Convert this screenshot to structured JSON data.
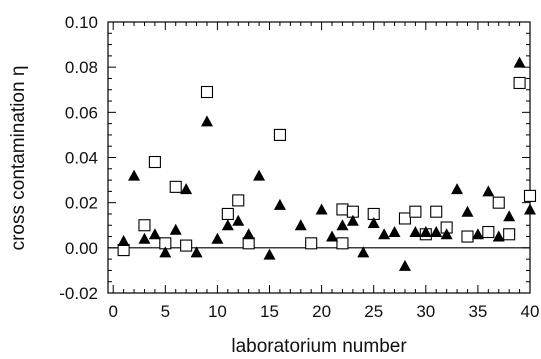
{
  "chart_data": {
    "type": "scatter",
    "title": "",
    "xlabel": "laboratorium number",
    "ylabel": "cross contamination η",
    "xlim": [
      -0.5,
      40
    ],
    "ylim": [
      -0.02,
      0.1
    ],
    "xticks": [
      "0",
      "5",
      "10",
      "15",
      "20",
      "25",
      "30",
      "35",
      "40"
    ],
    "yticks": [
      "-0.02",
      "0.00",
      "0.02",
      "0.04",
      "0.06",
      "0.08",
      "0.10"
    ],
    "zero_line": 0,
    "grid": false,
    "series": [
      {
        "marker": "open-square",
        "x": [
          1,
          3,
          4,
          5,
          6,
          7,
          9,
          11,
          12,
          13,
          16,
          19,
          22,
          22,
          23,
          25,
          28,
          29,
          30,
          31,
          32,
          34,
          36,
          37,
          38,
          39,
          40
        ],
        "y": [
          -0.001,
          0.01,
          0.038,
          0.002,
          0.027,
          0.001,
          0.069,
          0.015,
          0.021,
          0.002,
          0.05,
          0.002,
          0.017,
          0.002,
          0.016,
          0.015,
          0.013,
          0.016,
          0.006,
          0.016,
          0.009,
          0.005,
          0.007,
          0.02,
          0.006,
          0.073,
          0.023
        ]
      },
      {
        "marker": "filled-triangle",
        "x": [
          1,
          2,
          3,
          4,
          5,
          6,
          7,
          8,
          9,
          10,
          11,
          12,
          13,
          14,
          15,
          16,
          18,
          20,
          21,
          22,
          23,
          24,
          25,
          26,
          27,
          28,
          29,
          30,
          31,
          32,
          33,
          34,
          35,
          36,
          37,
          38,
          39,
          40
        ],
        "y": [
          0.003,
          0.032,
          0.004,
          0.006,
          -0.002,
          0.008,
          0.026,
          -0.002,
          0.056,
          0.004,
          0.01,
          0.012,
          0.006,
          0.032,
          -0.003,
          0.019,
          0.01,
          0.017,
          0.005,
          0.01,
          0.012,
          -0.002,
          0.011,
          0.006,
          0.007,
          -0.008,
          0.007,
          0.007,
          0.007,
          0.006,
          0.026,
          0.016,
          0.006,
          0.025,
          0.005,
          0.014,
          0.082,
          0.017
        ]
      }
    ]
  }
}
